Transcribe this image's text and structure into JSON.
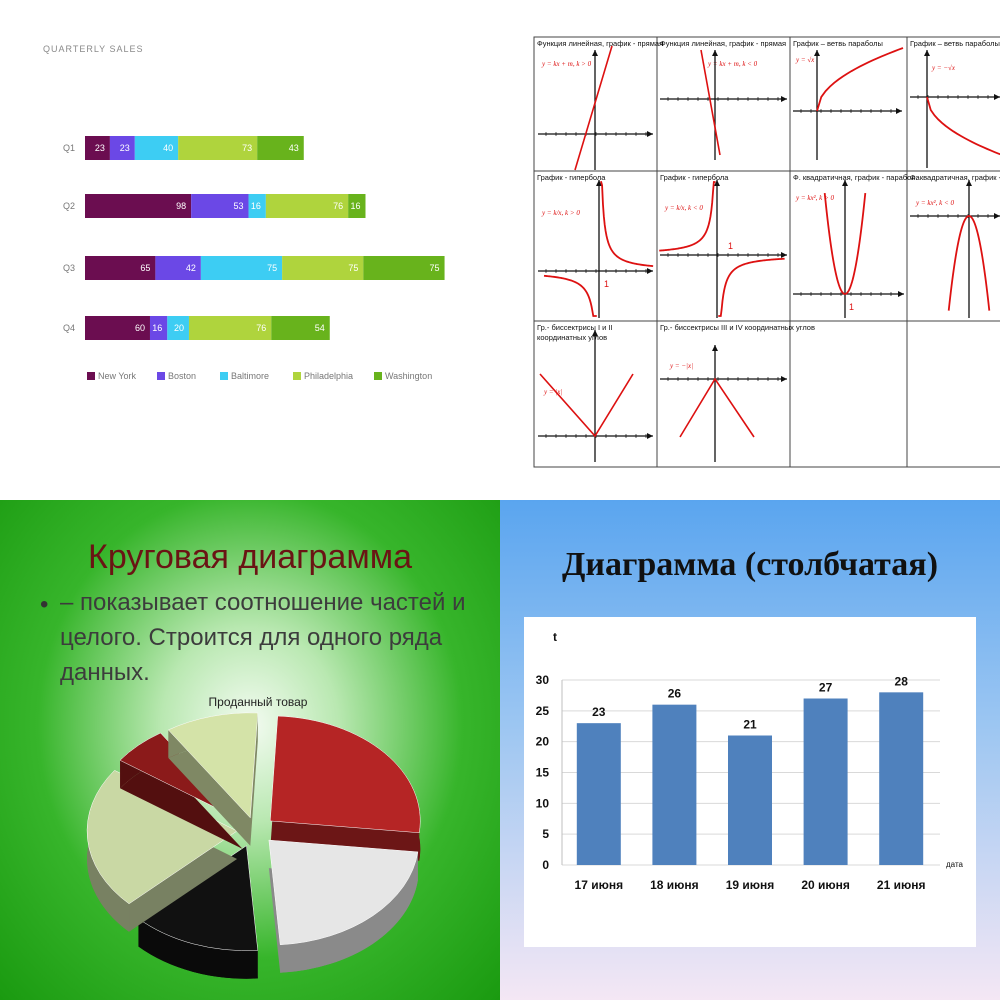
{
  "panels": {
    "quarterly": {
      "title": "QUARTERLY SALES",
      "chart_data": {
        "type": "bar",
        "orientation": "horizontal",
        "stacked": true,
        "categories": [
          "Q1",
          "Q2",
          "Q3",
          "Q4"
        ],
        "series": [
          {
            "name": "New York",
            "color": "#6b0d50",
            "values": [
              23,
              98,
              65,
              60
            ]
          },
          {
            "name": "Boston",
            "color": "#6b48e6",
            "values": [
              23,
              53,
              42,
              16
            ]
          },
          {
            "name": "Baltimore",
            "color": "#3dcdf3",
            "values": [
              40,
              16,
              75,
              20
            ]
          },
          {
            "name": "Philadelphia",
            "color": "#afd43d",
            "values": [
              73,
              76,
              75,
              76
            ]
          },
          {
            "name": "Washington",
            "color": "#68b31c",
            "values": [
              43,
              16,
              75,
              54
            ]
          }
        ],
        "legend": "bottom"
      }
    },
    "functions": {
      "cells": [
        {
          "title": "Функция линейная, график - прямая",
          "formula": "y = kx + m, k > 0"
        },
        {
          "title": "Функция линейная, график - прямая",
          "formula": "y = kx + m, k < 0"
        },
        {
          "title": "График – ветвь параболы",
          "formula": "y = √x"
        },
        {
          "title": "График – ветвь параболы",
          "formula": "y = −√x"
        },
        {
          "title": "График - гипербола",
          "formula": "y = k/x, k > 0"
        },
        {
          "title": "График - гипербола",
          "formula": "y = k/x, k < 0"
        },
        {
          "title": "Ф. квадратичная, график - парабола",
          "formula": "y = kx², k > 0"
        },
        {
          "title": "Ф. квадратичная, график - парабола",
          "formula": "y = kx², k < 0"
        },
        {
          "title": "Гр.- биссектрисы  I и II координатных углов",
          "formula": "y = |x|"
        },
        {
          "title": "Гр.- биссектрисы  III и IV координатных углов",
          "formula": "y = −|x|"
        }
      ],
      "mark_one": "1"
    },
    "pie_slide": {
      "title": "Круговая диаграмма",
      "bullet": "•",
      "text": "– показывает соотношение частей и целого. Строится для одного ряда данных.",
      "chart_title": "Проданный товар",
      "chart_data": {
        "type": "pie",
        "title": "Проданный товар",
        "slices": [
          {
            "color": "#b52525",
            "value": 26
          },
          {
            "color": "#e6e6e6",
            "value": 22
          },
          {
            "color": "#111111",
            "value": 14
          },
          {
            "color": "#c9d8a4",
            "value": 22
          },
          {
            "color": "#8b1a1a",
            "value": 6
          },
          {
            "color": "#d4e3a8",
            "value": 10
          }
        ]
      }
    },
    "bar_slide": {
      "title": "Диаграмма (столбчатая)",
      "chart_data": {
        "type": "bar",
        "categories": [
          "17 июня",
          "18 июня",
          "19 июня",
          "20 июня",
          "21 июня"
        ],
        "values": [
          23,
          26,
          21,
          27,
          28
        ],
        "ylabel": "t",
        "xlabel": "дата",
        "ylim": [
          0,
          30
        ],
        "yticks": [
          0,
          5,
          10,
          15,
          20,
          25,
          30
        ],
        "color": "#4f81bd"
      }
    }
  }
}
